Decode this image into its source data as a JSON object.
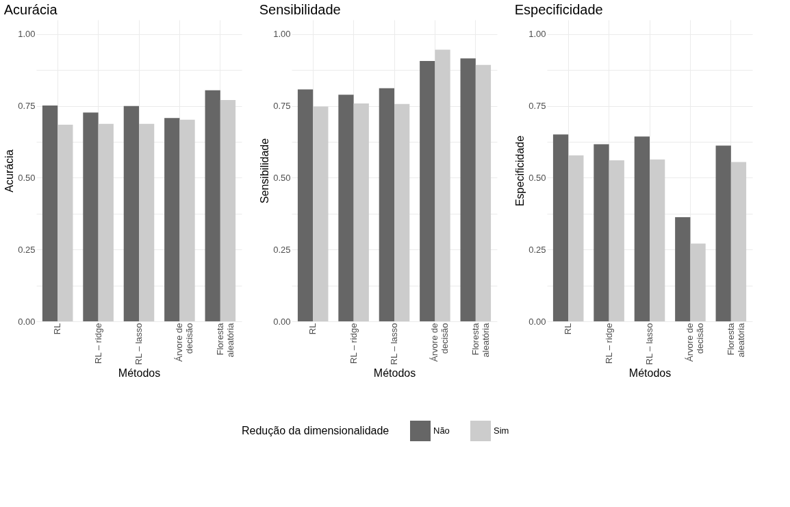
{
  "chart_data": [
    {
      "type": "bar",
      "title": "Acurácia",
      "xlabel": "Métodos",
      "ylabel": "Acurácia",
      "legend": "bottom",
      "grid": true,
      "categories": [
        "RL",
        "RL – ridge",
        "RL – lasso",
        "Árvore de decisão",
        "Floresta aleatória"
      ],
      "ylim": [
        0,
        1.05
      ],
      "yticks": [
        {
          "value": 0,
          "label": "0.00"
        },
        {
          "value": 0.125,
          "label": null
        },
        {
          "value": 0.25,
          "label": "0.25"
        },
        {
          "value": 0.375,
          "label": null
        },
        {
          "value": 0.5,
          "label": "0.50"
        },
        {
          "value": 0.625,
          "label": null
        },
        {
          "value": 0.75,
          "label": "0.75"
        },
        {
          "value": 0.875,
          "label": null
        },
        {
          "value": 1,
          "label": "1.00"
        }
      ],
      "series": [
        {
          "name": "Não",
          "color": "#666666",
          "values": [
            0.752,
            0.727,
            0.75,
            0.708,
            0.805
          ]
        },
        {
          "name": "Sim",
          "color": "#cccccc",
          "values": [
            0.685,
            0.688,
            0.688,
            0.702,
            0.771
          ]
        }
      ]
    },
    {
      "type": "bar",
      "title": "Sensibilidade",
      "xlabel": "Métodos",
      "ylabel": "Sensibilidade",
      "legend": "bottom",
      "grid": true,
      "categories": [
        "RL",
        "RL – ridge",
        "RL – lasso",
        "Árvore de decisão",
        "Floresta aleatória"
      ],
      "ylim": [
        0,
        1.05
      ],
      "yticks": [
        {
          "value": 0,
          "label": "0.00"
        },
        {
          "value": 0.125,
          "label": null
        },
        {
          "value": 0.25,
          "label": "0.25"
        },
        {
          "value": 0.375,
          "label": null
        },
        {
          "value": 0.5,
          "label": "0.50"
        },
        {
          "value": 0.625,
          "label": null
        },
        {
          "value": 0.75,
          "label": "0.75"
        },
        {
          "value": 0.875,
          "label": null
        },
        {
          "value": 1,
          "label": "1.00"
        }
      ],
      "series": [
        {
          "name": "Não",
          "color": "#666666",
          "values": [
            0.808,
            0.789,
            0.812,
            0.907,
            0.916
          ]
        },
        {
          "name": "Sim",
          "color": "#cccccc",
          "values": [
            0.748,
            0.759,
            0.757,
            0.946,
            0.893
          ]
        }
      ]
    },
    {
      "type": "bar",
      "title": "Especificidade",
      "xlabel": "Métodos",
      "ylabel": "Especificidade",
      "legend_title": "Redução da dimensionalidade",
      "legend": "bottom",
      "grid": true,
      "categories": [
        "RL",
        "RL – ridge",
        "RL – lasso",
        "Árvore de decisão",
        "Floresta aleatória"
      ],
      "ylim": [
        0,
        1.05
      ],
      "yticks": [
        {
          "value": 0,
          "label": "0.00"
        },
        {
          "value": 0.125,
          "label": null
        },
        {
          "value": 0.25,
          "label": "0.25"
        },
        {
          "value": 0.375,
          "label": null
        },
        {
          "value": 0.5,
          "label": "0.50"
        },
        {
          "value": 0.625,
          "label": null
        },
        {
          "value": 0.75,
          "label": "0.75"
        },
        {
          "value": 0.875,
          "label": null
        },
        {
          "value": 1,
          "label": "1.00"
        }
      ],
      "series": [
        {
          "name": "Não",
          "color": "#666666",
          "values": [
            0.651,
            0.617,
            0.644,
            0.363,
            0.612
          ]
        },
        {
          "name": "Sim",
          "color": "#cccccc",
          "values": [
            0.578,
            0.561,
            0.564,
            0.271,
            0.555
          ]
        }
      ]
    }
  ]
}
